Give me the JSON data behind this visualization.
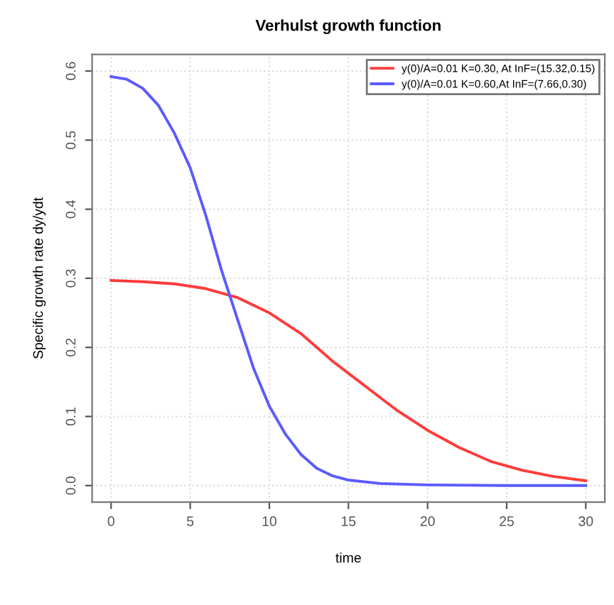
{
  "chart_data": {
    "type": "line",
    "title": "Verhulst growth function",
    "xlabel": "time",
    "ylabel": "Specific growth rate dy/ydt",
    "xlim": [
      -1.2,
      31.2
    ],
    "ylim": [
      -0.024,
      0.624
    ],
    "xticks": [
      0,
      5,
      10,
      15,
      20,
      25,
      30
    ],
    "yticks": [
      {
        "value": 0.0,
        "label": "0.0"
      },
      {
        "value": 0.1,
        "label": "0.1"
      },
      {
        "value": 0.2,
        "label": "0.2"
      },
      {
        "value": 0.3,
        "label": "0.3"
      },
      {
        "value": 0.4,
        "label": "0.4"
      },
      {
        "value": 0.5,
        "label": "0.5"
      },
      {
        "value": 0.6,
        "label": "0.6"
      }
    ],
    "grid": true,
    "legend": "top right",
    "marker": "none",
    "line_style": "solid",
    "series": [
      {
        "name": "y(0)/A=0.01 K=0.30, At InF=(15.32,0.15)",
        "color": "#ff3b3b",
        "x": [
          0,
          2,
          4,
          6,
          8,
          10,
          12,
          14,
          16,
          18,
          20,
          22,
          24,
          26,
          28,
          30
        ],
        "values": [
          0.297,
          0.295,
          0.292,
          0.285,
          0.272,
          0.25,
          0.22,
          0.18,
          0.145,
          0.11,
          0.08,
          0.055,
          0.035,
          0.022,
          0.013,
          0.007
        ]
      },
      {
        "name": "y(0)/A=0.01 K=0.60,At InF=(7.66,0.30)",
        "color": "#5b5bff",
        "x": [
          0,
          1,
          2,
          3,
          4,
          5,
          6,
          7,
          8,
          9,
          10,
          11,
          12,
          13,
          14,
          15,
          17,
          20,
          25,
          30
        ],
        "values": [
          0.592,
          0.588,
          0.575,
          0.55,
          0.51,
          0.46,
          0.39,
          0.31,
          0.24,
          0.17,
          0.115,
          0.075,
          0.045,
          0.025,
          0.014,
          0.008,
          0.003,
          0.001,
          0,
          0
        ]
      }
    ]
  }
}
